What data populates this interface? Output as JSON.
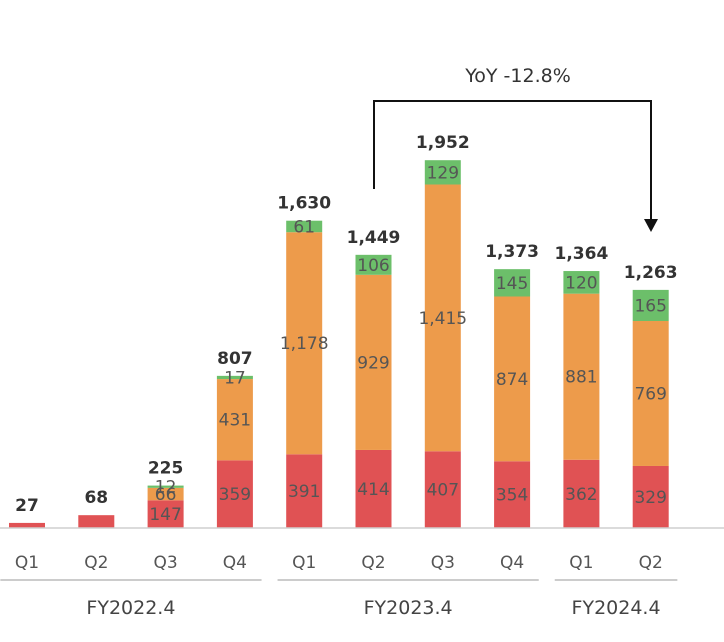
{
  "chart_data": {
    "type": "bar",
    "stacked": true,
    "categories": [
      "Q1",
      "Q2",
      "Q3",
      "Q4",
      "Q1",
      "Q2",
      "Q3",
      "Q4",
      "Q1",
      "Q2"
    ],
    "groups": [
      {
        "label": "FY2022.4",
        "categories": [
          0,
          1,
          2,
          3
        ]
      },
      {
        "label": "FY2023.4",
        "categories": [
          4,
          5,
          6,
          7
        ]
      },
      {
        "label": "FY2024.4",
        "categories": [
          8,
          9
        ]
      }
    ],
    "totals": [
      27,
      68,
      225,
      807,
      1630,
      1449,
      1952,
      1373,
      1364,
      1263
    ],
    "total_labels": [
      "27",
      "68",
      "225",
      "807",
      "1,630",
      "1,449",
      "1,952",
      "1,373",
      "1,364",
      "1,263"
    ],
    "series": [
      {
        "name": "red",
        "color": "#e05254",
        "values": [
          27,
          68,
          147,
          359,
          391,
          414,
          407,
          354,
          362,
          329
        ],
        "labels": [
          "",
          "",
          "147",
          "359",
          "391",
          "414",
          "407",
          "354",
          "362",
          "329"
        ]
      },
      {
        "name": "orange",
        "color": "#ed9b4b",
        "values": [
          0,
          0,
          66,
          431,
          1178,
          929,
          1415,
          874,
          881,
          769
        ],
        "labels": [
          "",
          "",
          "66",
          "431",
          "1,178",
          "929",
          "1,415",
          "874",
          "881",
          "769"
        ]
      },
      {
        "name": "green",
        "color": "#6cbf6a",
        "values": [
          0,
          0,
          12,
          17,
          61,
          106,
          129,
          145,
          120,
          165
        ],
        "labels": [
          "",
          "",
          "12",
          "17",
          "61",
          "106",
          "129",
          "145",
          "120",
          "165"
        ]
      }
    ],
    "ylim": [
      0,
      1952
    ],
    "annotation": {
      "text": "YoY -12.8%",
      "from_category": 5,
      "to_category": 9
    },
    "legend": "none",
    "grid": false
  }
}
